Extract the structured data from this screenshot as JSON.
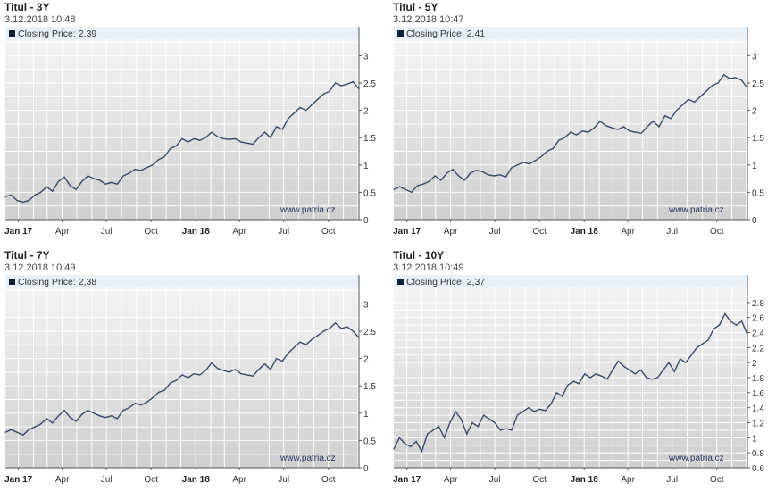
{
  "chart_data": [
    {
      "type": "line",
      "title": "Titul - 3Y",
      "timestamp": "3.12.2018 10:48",
      "legend": "Closing Price: 2,39",
      "watermark": "www.patria.cz",
      "ylim": [
        0,
        3.3
      ],
      "yticks": [
        "0",
        "0.5",
        "1",
        "1.5",
        "2",
        "2.5",
        "3"
      ],
      "xticks": [
        "Jan 17",
        "Apr",
        "Jul",
        "Oct",
        "Jan 18",
        "Apr",
        "Jul",
        "Oct"
      ],
      "x_range": [
        "2016-12",
        "2018-12"
      ],
      "values": [
        0.42,
        0.45,
        0.35,
        0.32,
        0.35,
        0.45,
        0.5,
        0.6,
        0.52,
        0.7,
        0.78,
        0.62,
        0.55,
        0.7,
        0.8,
        0.75,
        0.72,
        0.65,
        0.68,
        0.65,
        0.8,
        0.85,
        0.92,
        0.9,
        0.95,
        1.0,
        1.1,
        1.15,
        1.3,
        1.35,
        1.48,
        1.42,
        1.48,
        1.45,
        1.5,
        1.6,
        1.52,
        1.48,
        1.47,
        1.48,
        1.42,
        1.4,
        1.38,
        1.5,
        1.6,
        1.5,
        1.7,
        1.65,
        1.85,
        1.95,
        2.05,
        2.0,
        2.1,
        2.2,
        2.3,
        2.35,
        2.5,
        2.45,
        2.48,
        2.52,
        2.39
      ]
    },
    {
      "type": "line",
      "title": "Titul - 5Y",
      "timestamp": "3.12.2018 10:47",
      "legend": "Closing Price: 2,41",
      "watermark": "www.patria.cz",
      "ylim": [
        0,
        3.3
      ],
      "yticks": [
        "0",
        "0.5",
        "1",
        "1.5",
        "2",
        "2.5",
        "3"
      ],
      "xticks": [
        "Jan 17",
        "Apr",
        "Jul",
        "Oct",
        "Jan 18",
        "Apr",
        "Jul",
        "Oct"
      ],
      "x_range": [
        "2016-12",
        "2018-12"
      ],
      "values": [
        0.55,
        0.6,
        0.55,
        0.5,
        0.62,
        0.65,
        0.7,
        0.8,
        0.72,
        0.85,
        0.92,
        0.8,
        0.72,
        0.85,
        0.9,
        0.88,
        0.82,
        0.8,
        0.82,
        0.78,
        0.95,
        1.0,
        1.05,
        1.02,
        1.08,
        1.15,
        1.25,
        1.3,
        1.45,
        1.5,
        1.6,
        1.55,
        1.62,
        1.6,
        1.68,
        1.8,
        1.72,
        1.68,
        1.65,
        1.7,
        1.62,
        1.6,
        1.58,
        1.7,
        1.8,
        1.7,
        1.9,
        1.85,
        2.0,
        2.1,
        2.2,
        2.15,
        2.25,
        2.35,
        2.45,
        2.5,
        2.65,
        2.58,
        2.6,
        2.55,
        2.41
      ]
    },
    {
      "type": "line",
      "title": "Titul - 7Y",
      "timestamp": "3.12.2018 10:49",
      "legend": "Closing Price: 2,38",
      "watermark": "www.patria.cz",
      "ylim": [
        0,
        3.3
      ],
      "yticks": [
        "0",
        "0.5",
        "1",
        "1.5",
        "2",
        "2.5",
        "3"
      ],
      "xticks": [
        "Jan 17",
        "Apr",
        "Jul",
        "Oct",
        "Jan 18",
        "Apr",
        "Jul",
        "Oct"
      ],
      "x_range": [
        "2016-12",
        "2018-12"
      ],
      "values": [
        0.65,
        0.7,
        0.65,
        0.6,
        0.7,
        0.75,
        0.8,
        0.9,
        0.82,
        0.95,
        1.05,
        0.92,
        0.85,
        0.98,
        1.05,
        1.0,
        0.95,
        0.92,
        0.95,
        0.9,
        1.05,
        1.1,
        1.18,
        1.15,
        1.2,
        1.28,
        1.38,
        1.42,
        1.55,
        1.6,
        1.7,
        1.65,
        1.72,
        1.7,
        1.78,
        1.92,
        1.82,
        1.78,
        1.75,
        1.8,
        1.72,
        1.7,
        1.68,
        1.8,
        1.9,
        1.8,
        2.0,
        1.95,
        2.1,
        2.2,
        2.3,
        2.25,
        2.35,
        2.42,
        2.5,
        2.55,
        2.65,
        2.55,
        2.58,
        2.5,
        2.38
      ]
    },
    {
      "type": "line",
      "title": "Titul - 10Y",
      "timestamp": "3.12.2018 10:49",
      "legend": "Closing Price: 2,37",
      "watermark": "www.patria.cz",
      "ylim": [
        0.6,
        3.0
      ],
      "yticks": [
        "0.6",
        "0.8",
        "1",
        "1.2",
        "1.4",
        "1.6",
        "1.8",
        "2",
        "2.2",
        "2.4",
        "2.6",
        "2.8"
      ],
      "xticks": [
        "Jan 17",
        "Apr",
        "Jul",
        "Oct",
        "Jan 18",
        "Apr",
        "Jul",
        "Oct"
      ],
      "x_range": [
        "2016-12",
        "2018-12"
      ],
      "values": [
        0.85,
        1.0,
        0.92,
        0.88,
        0.95,
        0.82,
        1.05,
        1.1,
        1.15,
        1.0,
        1.2,
        1.35,
        1.25,
        1.05,
        1.2,
        1.15,
        1.3,
        1.25,
        1.2,
        1.1,
        1.12,
        1.1,
        1.3,
        1.35,
        1.4,
        1.35,
        1.38,
        1.36,
        1.45,
        1.6,
        1.55,
        1.7,
        1.75,
        1.72,
        1.85,
        1.8,
        1.85,
        1.82,
        1.78,
        1.9,
        2.02,
        1.95,
        1.9,
        1.85,
        1.9,
        1.8,
        1.78,
        1.8,
        1.9,
        2.0,
        1.88,
        2.05,
        2.0,
        2.1,
        2.2,
        2.25,
        2.3,
        2.45,
        2.5,
        2.65,
        2.55,
        2.5,
        2.55,
        2.37
      ]
    }
  ],
  "colors": {
    "line": "#3a4a66",
    "legend_box": "#0f1f3a",
    "header": "#e8f1f8"
  }
}
